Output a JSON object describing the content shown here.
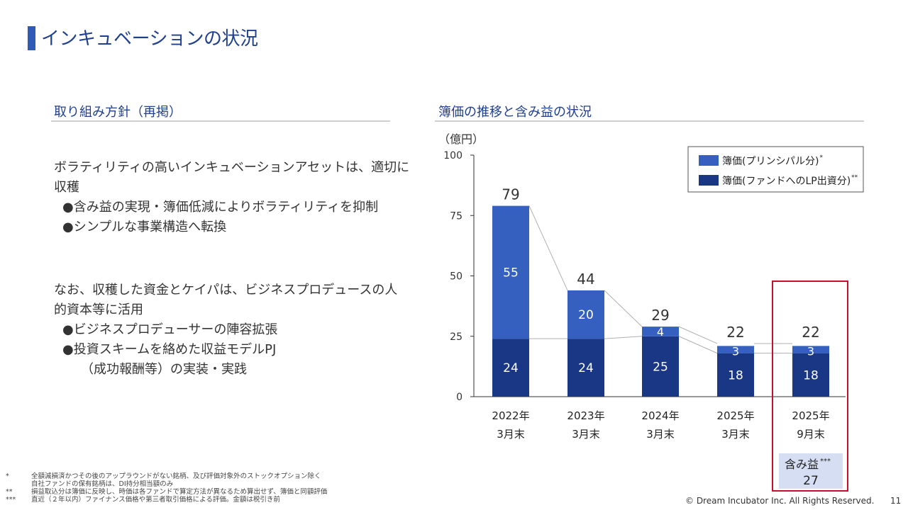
{
  "page": {
    "title": "インキュベーションの状況",
    "page_number": "11",
    "copyright": "© Dream Incubator Inc. All Rights Reserved."
  },
  "left": {
    "section_title": "取り組み方針（再掲）",
    "para1": [
      "ボラティリティの高いインキュベーションアセットは、適切に",
      "収穫"
    ],
    "bullets1": [
      "●含み益の実現・簿価低減によりボラティリティを抑制",
      "●シンプルな事業構造へ転換"
    ],
    "para2": [
      "なお、収穫した資金とケイパは、ビジネスプロデュースの人",
      "的資本等に活用"
    ],
    "bullets2": [
      "●ビジネスプロデューサーの陣容拡張",
      "●投資スキームを絡めた収益モデルPJ",
      "（成功報酬等）の実装・実践"
    ]
  },
  "right": {
    "section_title": "簿価の推移と含み益の状況",
    "unit": "（億円）"
  },
  "colors": {
    "principal": "#3560c0",
    "lp": "#1a3785",
    "accent": "#c8102e",
    "title": "#1f3f8f",
    "gain_box": "#d6def4"
  },
  "chart_data": {
    "type": "bar",
    "stacked": true,
    "categories": [
      [
        "2022年",
        "3月末"
      ],
      [
        "2023年",
        "3月末"
      ],
      [
        "2024年",
        "3月末"
      ],
      [
        "2025年",
        "3月末"
      ],
      [
        "2025年",
        "9月末"
      ]
    ],
    "series": [
      {
        "name": "簿価(ファンドへのLP出資分)",
        "marker": "**",
        "values": [
          24,
          24,
          25,
          18,
          18
        ]
      },
      {
        "name": "簿価(プリンシパル分)",
        "marker": "*",
        "values": [
          55,
          20,
          4,
          3,
          3
        ]
      }
    ],
    "totals": [
      79,
      44,
      29,
      22,
      22
    ],
    "ylim": [
      0,
      100
    ],
    "yticks": [
      0,
      25,
      50,
      75,
      100
    ],
    "ylabel": "（億円）",
    "highlight": {
      "category_index": 4,
      "label": "含み益",
      "marker": "***",
      "value": 27
    }
  },
  "footnotes": [
    {
      "mark": "*",
      "lines": [
        "全額減損済かつその後のアップラウンドがない銘柄、及び評価対象外のストックオプション除く",
        "自社ファンドの保有銘柄は、DI持分相当額のみ"
      ]
    },
    {
      "mark": "**",
      "lines": [
        "損益取込分は簿価に反映し、時価は各ファンドで算定方法が異なるため算出せず、簿価と同額評価"
      ]
    },
    {
      "mark": "***",
      "lines": [
        "直近（２年以内）ファイナンス価格や第三者取引価格による評価。金額は税引き前"
      ]
    }
  ]
}
